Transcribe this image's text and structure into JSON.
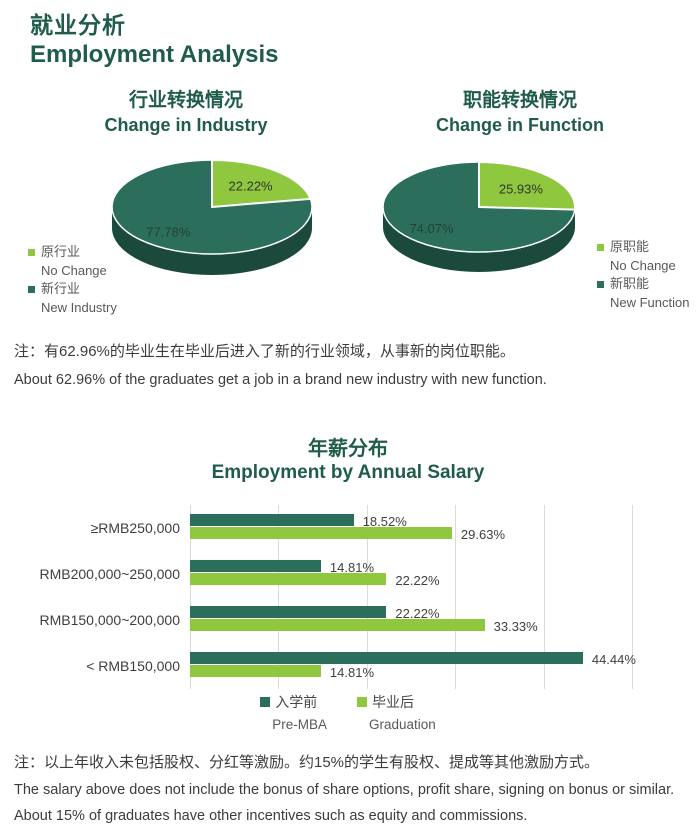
{
  "header": {
    "title_zh": "就业分析",
    "title_en": "Employment Analysis"
  },
  "colors": {
    "title_green": "#1F5C4B",
    "dark_green": "#2B6E5B",
    "dark_green_side": "#1B4A3C",
    "light_green": "#8FC73E",
    "grid": "#DCDCDC",
    "pie_label_on_light": "#333333",
    "pie_label_on_dark": "#24423A"
  },
  "industry_note": {
    "zh": "注：有62.96%的毕业生在毕业后进入了新的行业领域，从事新的岗位职能。",
    "en": "About 62.96% of the graduates get a job in a brand new industry with new function."
  },
  "salary_note": {
    "zh": "注：以上年收入未包括股权、分红等激励。约15%的学生有股权、提成等其他激励方式。",
    "en1": "The salary above does not include the bonus of share options, profit share, signing on bonus or similar.",
    "en2": "About 15% of graduates have other incentives such as equity and commissions."
  },
  "chart_data": [
    {
      "type": "pie",
      "title_zh": "行业转换情况",
      "title_en": "Change in Industry",
      "slices": [
        {
          "label_zh": "原行业",
          "label_en": "No Change",
          "value": 22.22,
          "color": "#8FC73E"
        },
        {
          "label_zh": "新行业",
          "label_en": "New Industry",
          "value": 77.78,
          "color": "#2B6E5B"
        }
      ],
      "legend_position": "bottom-left",
      "labels": [
        "22.22%",
        "77.78%"
      ]
    },
    {
      "type": "pie",
      "title_zh": "职能转换情况",
      "title_en": "Change in Function",
      "slices": [
        {
          "label_zh": "原职能",
          "label_en": "No Change",
          "value": 25.93,
          "color": "#8FC73E"
        },
        {
          "label_zh": "新职能",
          "label_en": "New Function",
          "value": 74.07,
          "color": "#2B6E5B"
        }
      ],
      "legend_position": "right",
      "labels": [
        "25.93%",
        "74.07%"
      ]
    },
    {
      "type": "bar",
      "orientation": "horizontal",
      "title_zh": "年薪分布",
      "title_en": "Employment by Annual Salary",
      "categories": [
        "≥RMB250,000",
        "RMB200,000~250,000",
        "RMB150,000~200,000",
        "< RMB150,000"
      ],
      "series": [
        {
          "name_zh": "入学前",
          "name_en": "Pre-MBA",
          "color": "#2B6E5B",
          "values": [
            18.52,
            14.81,
            22.22,
            44.44
          ]
        },
        {
          "name_zh": "毕业后",
          "name_en": "Graduation",
          "color": "#8FC73E",
          "values": [
            29.63,
            22.22,
            33.33,
            14.81
          ]
        }
      ],
      "value_suffix": "%",
      "xlim": [
        0,
        50
      ],
      "grid_step": 10,
      "grid": true,
      "legend_position": "bottom"
    }
  ]
}
